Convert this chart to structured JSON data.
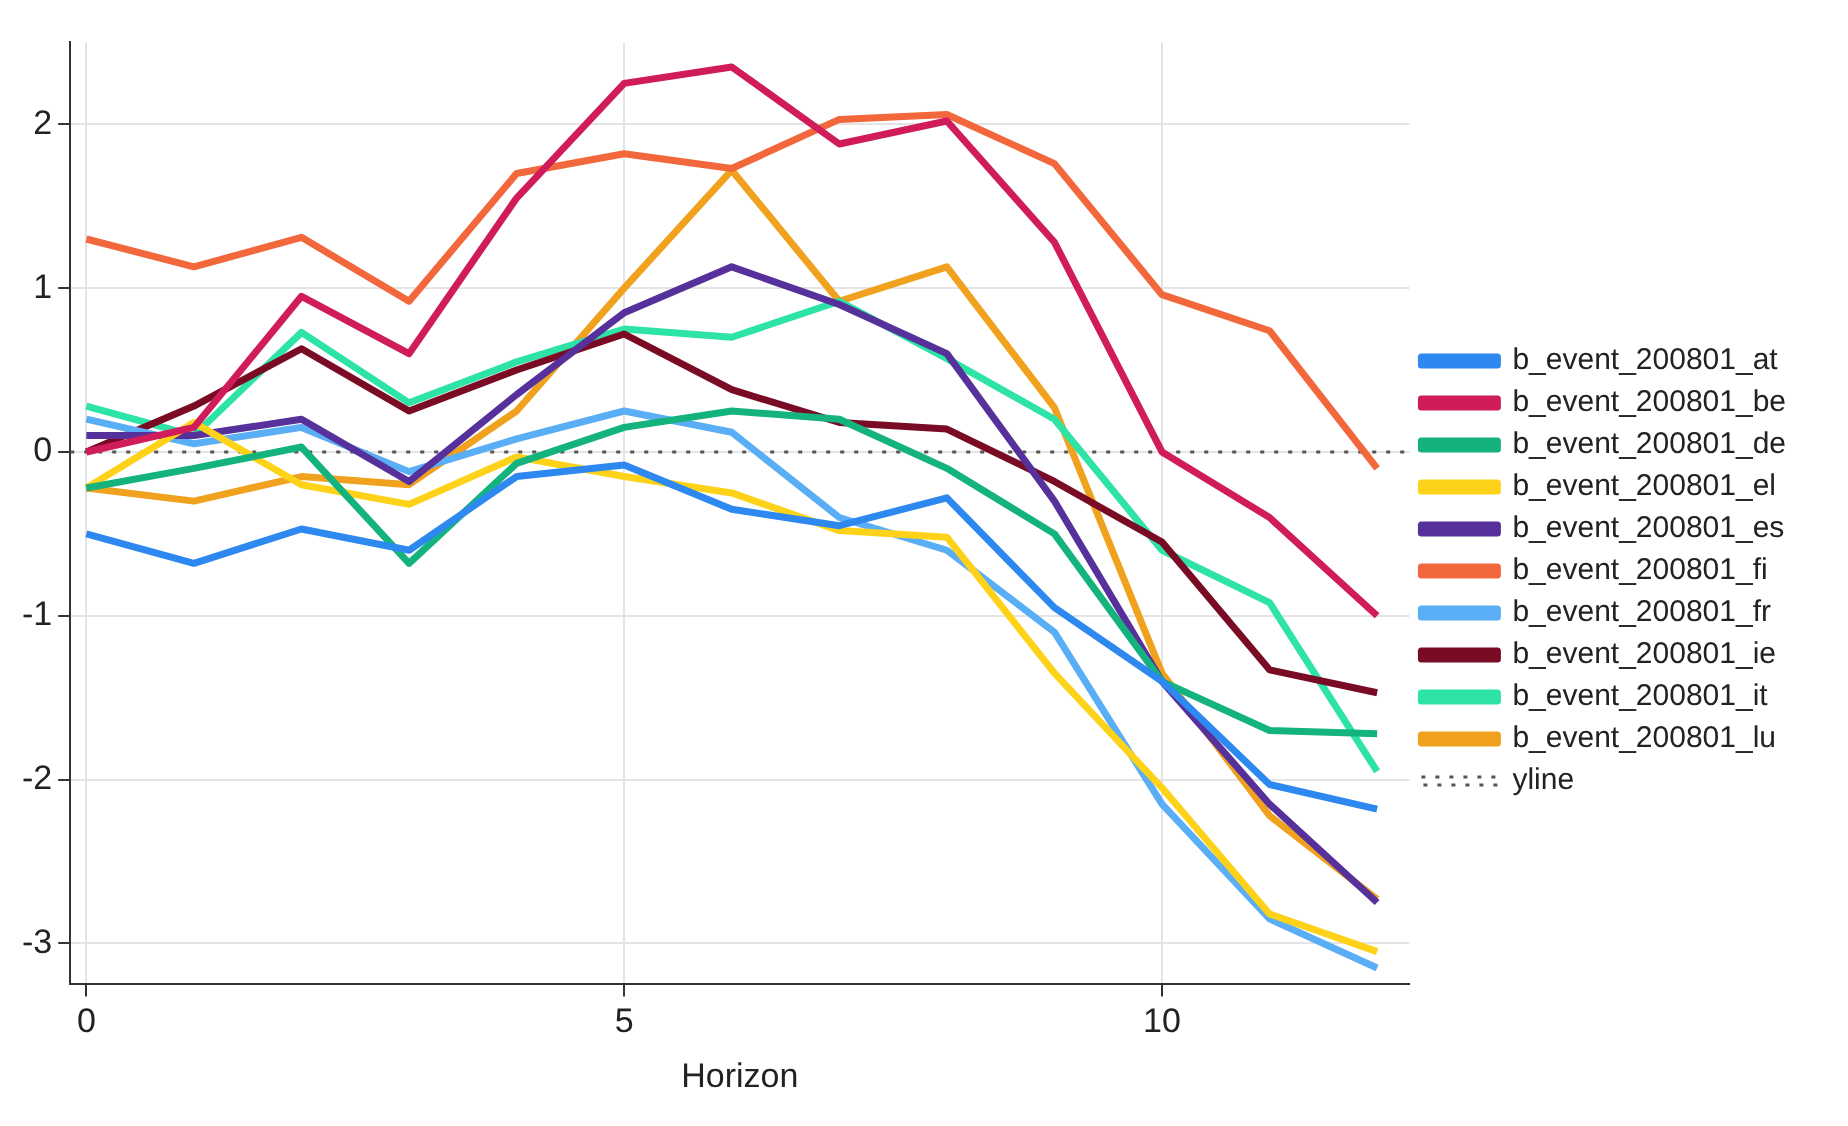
{
  "chart_data": {
    "type": "line",
    "xlabel": "Horizon",
    "x": [
      0,
      1,
      2,
      3,
      4,
      5,
      6,
      7,
      8,
      9,
      10,
      11,
      12
    ],
    "xlim": [
      -0.15,
      12.3
    ],
    "xticks": [
      0,
      5,
      10
    ],
    "ylim": [
      -3.25,
      2.5
    ],
    "yticks": [
      -3,
      -2,
      -1,
      0,
      1,
      2
    ],
    "grid": true,
    "legend": "right",
    "marker": "none",
    "line_style": "solid",
    "series": [
      {
        "name": "b_event_200801_at",
        "color": "#2d88f0",
        "values": [
          -0.5,
          -0.68,
          -0.47,
          -0.6,
          -0.15,
          -0.08,
          -0.35,
          -0.45,
          -0.28,
          -0.95,
          -1.4,
          -2.03,
          -2.18
        ]
      },
      {
        "name": "b_event_200801_be",
        "color": "#d01c5b",
        "values": [
          0,
          0.15,
          0.95,
          0.6,
          1.55,
          2.25,
          2.35,
          1.88,
          2.02,
          1.28,
          0,
          -0.4,
          -1.0
        ]
      },
      {
        "name": "b_event_200801_de",
        "color": "#14b37e",
        "values": [
          -0.22,
          -0.1,
          0.03,
          -0.68,
          -0.07,
          0.15,
          0.25,
          0.2,
          -0.1,
          -0.5,
          -1.4,
          -1.7,
          -1.72
        ]
      },
      {
        "name": "b_event_200801_el",
        "color": "#ffd21a",
        "values": [
          -0.22,
          0.18,
          -0.2,
          -0.32,
          -0.03,
          -0.15,
          -0.25,
          -0.48,
          -0.52,
          -1.35,
          -2.05,
          -2.82,
          -3.05
        ]
      },
      {
        "name": "b_event_200801_es",
        "color": "#56309b",
        "values": [
          0.1,
          0.1,
          0.2,
          -0.18,
          0.35,
          0.85,
          1.13,
          0.9,
          0.6,
          -0.3,
          -1.4,
          -2.15,
          -2.75
        ]
      },
      {
        "name": "b_event_200801_fi",
        "color": "#f2683c",
        "values": [
          1.3,
          1.13,
          1.31,
          0.92,
          1.7,
          1.82,
          1.73,
          2.03,
          2.06,
          1.76,
          0.96,
          0.74,
          -0.1
        ]
      },
      {
        "name": "b_event_200801_fr",
        "color": "#5aaef5",
        "values": [
          0.2,
          0.05,
          0.15,
          -0.12,
          0.08,
          0.25,
          0.12,
          -0.4,
          -0.6,
          -1.1,
          -2.15,
          -2.85,
          -3.15
        ]
      },
      {
        "name": "b_event_200801_ie",
        "color": "#7a0b25",
        "values": [
          0,
          0.28,
          0.63,
          0.25,
          0.5,
          0.72,
          0.38,
          0.18,
          0.14,
          -0.18,
          -0.55,
          -1.33,
          -1.47
        ]
      },
      {
        "name": "b_event_200801_it",
        "color": "#2de3a5",
        "values": [
          0.28,
          0.1,
          0.73,
          0.3,
          0.55,
          0.75,
          0.7,
          0.92,
          0.57,
          0.2,
          -0.6,
          -0.92,
          -1.95
        ]
      },
      {
        "name": "b_event_200801_lu",
        "color": "#f0a11e",
        "values": [
          -0.22,
          -0.3,
          -0.15,
          -0.2,
          0.25,
          1.0,
          1.72,
          0.92,
          1.13,
          0.27,
          -1.35,
          -2.22,
          -2.73
        ]
      }
    ],
    "ref_lines": [
      {
        "axis": "y",
        "value": 0,
        "label": "yline",
        "color": "#555555",
        "line_style": "dotted"
      }
    ]
  }
}
